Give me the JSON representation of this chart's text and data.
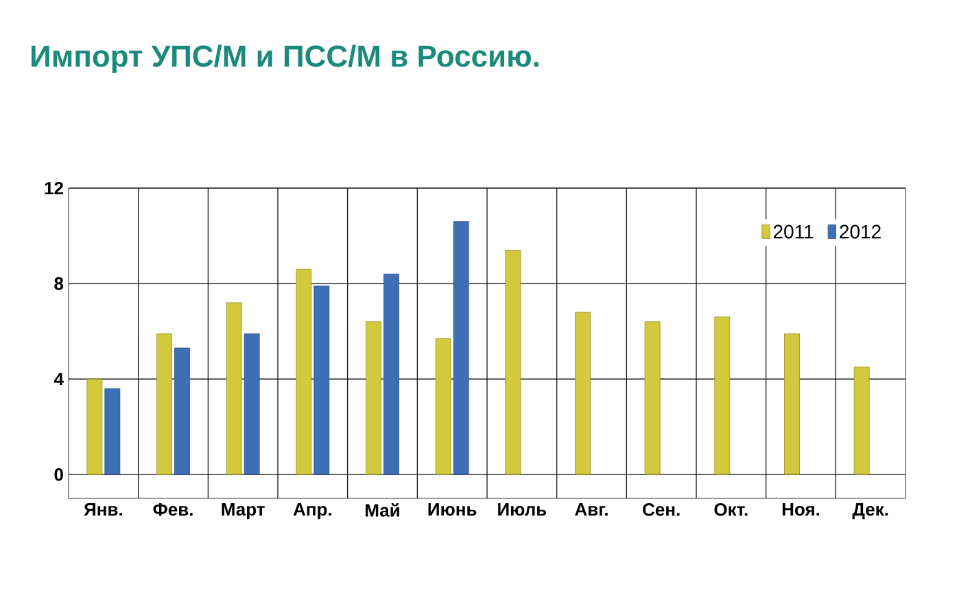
{
  "chart_data": {
    "type": "bar",
    "title": "Импорт УПС/М и ПСС/М в Россию.",
    "categories": [
      "Янв.",
      "Фев.",
      "Март",
      "Апр.",
      "Май",
      "Июнь",
      "Июль",
      "Авг.",
      "Сен.",
      "Окт.",
      "Ноя.",
      "Дек."
    ],
    "series": [
      {
        "name": "2011",
        "color": "#d2c93c",
        "values": [
          4.0,
          5.9,
          7.2,
          8.6,
          6.4,
          5.7,
          9.4,
          6.8,
          6.4,
          6.6,
          5.9,
          4.5
        ]
      },
      {
        "name": "2012",
        "color": "#3d6fb5",
        "values": [
          3.6,
          5.3,
          5.9,
          7.9,
          8.4,
          10.6,
          null,
          null,
          null,
          null,
          null,
          null
        ]
      }
    ],
    "ylim": [
      -1,
      12
    ],
    "yticks": [
      0,
      4,
      8,
      12
    ],
    "grid": true,
    "legend": "top right"
  }
}
